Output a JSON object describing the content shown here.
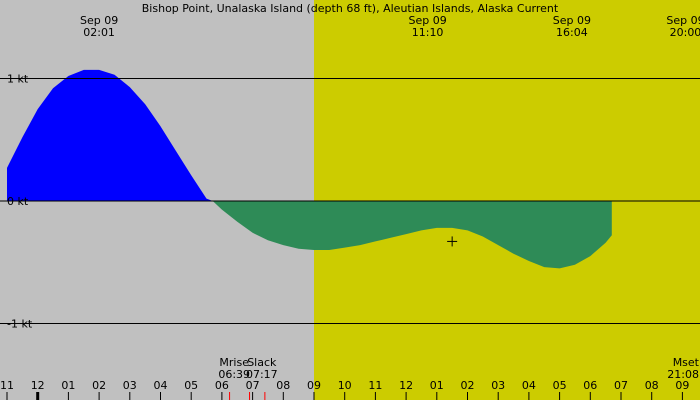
{
  "chart_data": {
    "type": "area",
    "title": "Bishop Point, Unalaska Island (depth 68 ft), Aleutian Islands, Alaska Current",
    "units": "kt",
    "ylim": [
      -1.45,
      1.5
    ],
    "xlim_hours": [
      -13,
      10
    ],
    "y_ticks": [
      {
        "value": 1,
        "label": "1 kt"
      },
      {
        "value": 0,
        "label": "0 kt"
      },
      {
        "value": -1,
        "label": "-1 kt"
      }
    ],
    "x_ticks": [
      {
        "h": -13,
        "label": "11"
      },
      {
        "h": -12,
        "label": "12"
      },
      {
        "h": -11,
        "label": "01"
      },
      {
        "h": -10,
        "label": "02"
      },
      {
        "h": -9,
        "label": "03"
      },
      {
        "h": -8,
        "label": "04"
      },
      {
        "h": -7,
        "label": "05"
      },
      {
        "h": -6,
        "label": "06"
      },
      {
        "h": -5,
        "label": "07"
      },
      {
        "h": -4,
        "label": "08"
      },
      {
        "h": -3,
        "label": "09"
      },
      {
        "h": -2,
        "label": "10"
      },
      {
        "h": -1,
        "label": "11"
      },
      {
        "h": 0,
        "label": "12"
      },
      {
        "h": 1,
        "label": "01"
      },
      {
        "h": 2,
        "label": "02"
      },
      {
        "h": 3,
        "label": "03"
      },
      {
        "h": 4,
        "label": "04"
      },
      {
        "h": 5,
        "label": "05"
      },
      {
        "h": 6,
        "label": "06"
      },
      {
        "h": 7,
        "label": "07"
      },
      {
        "h": 8,
        "label": "08"
      },
      {
        "h": 9,
        "label": "09"
      }
    ],
    "day_start_h": -3.0,
    "current_series": [
      {
        "h": -13.0,
        "v": 0.27
      },
      {
        "h": -12.5,
        "v": 0.52
      },
      {
        "h": -12.0,
        "v": 0.75
      },
      {
        "h": -11.5,
        "v": 0.92
      },
      {
        "h": -11.0,
        "v": 1.02
      },
      {
        "h": -10.5,
        "v": 1.07
      },
      {
        "h": -10.0,
        "v": 1.07
      },
      {
        "h": -9.5,
        "v": 1.03
      },
      {
        "h": -9.0,
        "v": 0.93
      },
      {
        "h": -8.5,
        "v": 0.79
      },
      {
        "h": -8.0,
        "v": 0.61
      },
      {
        "h": -7.5,
        "v": 0.41
      },
      {
        "h": -7.0,
        "v": 0.21
      },
      {
        "h": -6.5,
        "v": 0.02
      },
      {
        "h": -6.3,
        "v": 0.0
      },
      {
        "h": -6.0,
        "v": -0.07
      },
      {
        "h": -5.5,
        "v": -0.17
      },
      {
        "h": -5.0,
        "v": -0.26
      },
      {
        "h": -4.5,
        "v": -0.32
      },
      {
        "h": -4.0,
        "v": -0.36
      },
      {
        "h": -3.5,
        "v": -0.39
      },
      {
        "h": -3.0,
        "v": -0.4
      },
      {
        "h": -2.5,
        "v": -0.4
      },
      {
        "h": -2.0,
        "v": -0.38
      },
      {
        "h": -1.5,
        "v": -0.36
      },
      {
        "h": -1.0,
        "v": -0.33
      },
      {
        "h": -0.5,
        "v": -0.3
      },
      {
        "h": 0.0,
        "v": -0.27
      },
      {
        "h": 0.5,
        "v": -0.24
      },
      {
        "h": 1.0,
        "v": -0.22
      },
      {
        "h": 1.5,
        "v": -0.22
      },
      {
        "h": 2.0,
        "v": -0.24
      },
      {
        "h": 2.5,
        "v": -0.29
      },
      {
        "h": 3.0,
        "v": -0.36
      },
      {
        "h": 3.5,
        "v": -0.43
      },
      {
        "h": 4.0,
        "v": -0.49
      },
      {
        "h": 4.5,
        "v": -0.54
      },
      {
        "h": 5.0,
        "v": -0.55
      },
      {
        "h": 5.5,
        "v": -0.52
      },
      {
        "h": 6.0,
        "v": -0.45
      },
      {
        "h": 6.5,
        "v": -0.34
      },
      {
        "h": 6.7,
        "v": -0.28
      }
    ],
    "event_labels": [
      {
        "h": -10.0,
        "line1": "Sep 09",
        "line2": "02:01"
      },
      {
        "h": 0.7,
        "line1": "Sep 09",
        "line2": "11:10"
      },
      {
        "h": 5.4,
        "line1": "Sep 09",
        "line2": "16:04"
      },
      {
        "h": 9.1,
        "line1": "Sep 09",
        "line2": "20:00"
      }
    ],
    "bottom_events": [
      {
        "h": -5.6,
        "line1": "Mrise",
        "line2": "06:39",
        "anchor": "middle"
      },
      {
        "h": -4.7,
        "line1": "Slack",
        "line2": "07:17",
        "anchor": "middle"
      },
      {
        "h": 10.3,
        "line1": "Mset",
        "line2": "21:08",
        "anchor": "end"
      }
    ],
    "red_marks_h": [
      -5.75,
      -5.1,
      -4.6,
      9.7
    ],
    "now_marker": {
      "h": 1.5,
      "v": -0.33
    },
    "colors": {
      "night": "#c0c0c0",
      "day": "#cccc00",
      "flood": "#0000ff",
      "ebb": "#2e8b57",
      "axis": "#000000",
      "tick_red": "#ff0000"
    }
  }
}
